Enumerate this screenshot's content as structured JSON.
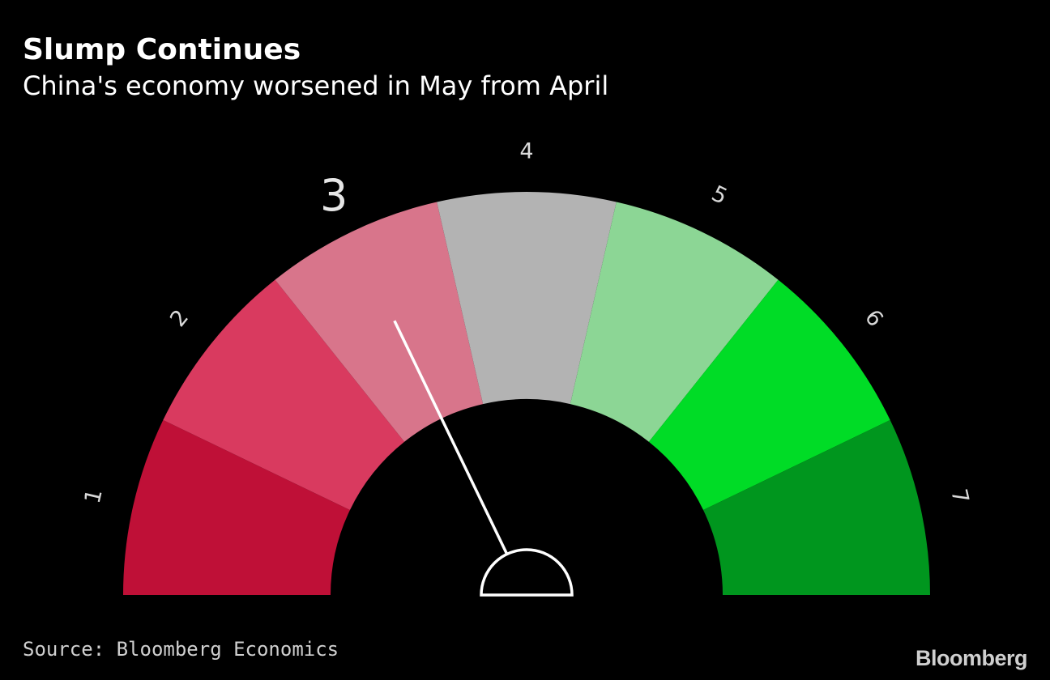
{
  "title": "Slump Continues",
  "subtitle": "China's economy worsened in May from April",
  "source": "Source: Bloomberg Economics",
  "brand": "Bloomberg",
  "chart_data": {
    "type": "gauge",
    "title": "Slump Continues",
    "subtitle": "China's economy worsened in May from April",
    "scale_min": 1,
    "scale_max": 7,
    "categories": [
      "1",
      "2",
      "3",
      "4",
      "5",
      "6",
      "7"
    ],
    "segment_colors": [
      "#bf1037",
      "#d93a5f",
      "#d8758b",
      "#b3b3b3",
      "#8cd695",
      "#00dc26",
      "#00961e"
    ],
    "current_value": 3,
    "highlighted_label": "3",
    "needle_color": "#ffffff"
  }
}
